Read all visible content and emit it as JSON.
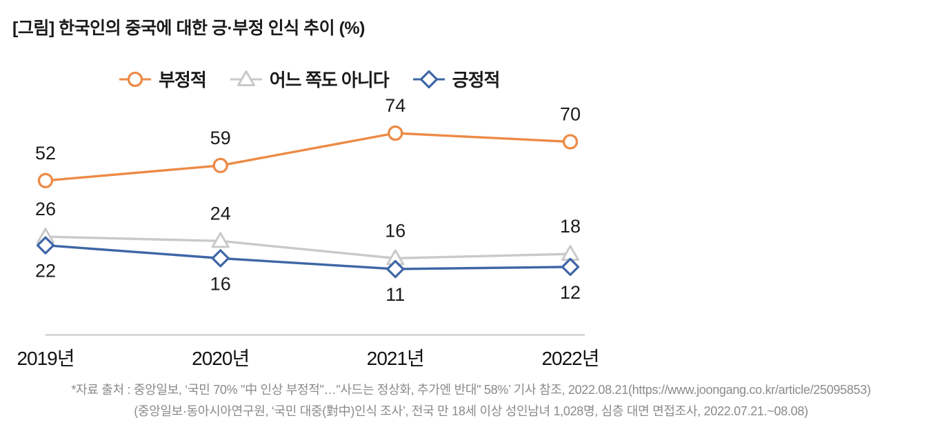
{
  "title": "[그림] 한국인의 중국에 대한 긍·부정 인식 추이 (%)",
  "legend": {
    "items": [
      {
        "label": "부정적",
        "marker": "circle",
        "color": "#ED8A45"
      },
      {
        "label": "어느 쪽도 아니다",
        "marker": "triangle",
        "color": "#C9C9C9"
      },
      {
        "label": "긍정적",
        "marker": "diamond",
        "color": "#3E66A6"
      }
    ]
  },
  "chart_data": {
    "type": "line",
    "title": "[그림] 한국인의 중국에 대한 긍·부정 인식 추이 (%)",
    "unit": "%",
    "categories": [
      "2019년",
      "2020년",
      "2021년",
      "2022년"
    ],
    "series": [
      {
        "name": "부정적",
        "marker": "circle",
        "color": "#ED8A45",
        "values": [
          52,
          59,
          74,
          70
        ],
        "label_position": "above"
      },
      {
        "name": "어느 쪽도 아니다",
        "marker": "triangle",
        "color": "#C9C9C9",
        "values": [
          26,
          24,
          16,
          18
        ],
        "label_position": "above"
      },
      {
        "name": "긍정적",
        "marker": "diamond",
        "color": "#3E66A6",
        "values": [
          22,
          16,
          11,
          12
        ],
        "label_position": "below"
      }
    ],
    "xlabel": "",
    "ylabel": "",
    "ylim": [
      0,
      100
    ],
    "grid": false,
    "y_axis_visible": false,
    "legend_position": "top",
    "data_labels": true
  },
  "footer": {
    "line1": "*자료 출처 : 중앙일보, ‘국민 70% \"中 인상 부정적\"…\"사드는 정상화, 추가엔 반대\" 58%’ 기사 참조, 2022.08.21(https://www.joongang.co.kr/article/25095853)",
    "line2": "(중앙일보·동아시아연구원, ‘국민 대중(對中)인식 조사’, 전국 만 18세 이상 성인남녀 1,028명, 심층 대면 면접조사, 2022.07.21.~08.08)"
  },
  "colors": {
    "text": "#1A1A1A",
    "axis_line": "#C6C6C6",
    "footer_text": "#8A8A8A",
    "background": "#FFFFFF"
  }
}
